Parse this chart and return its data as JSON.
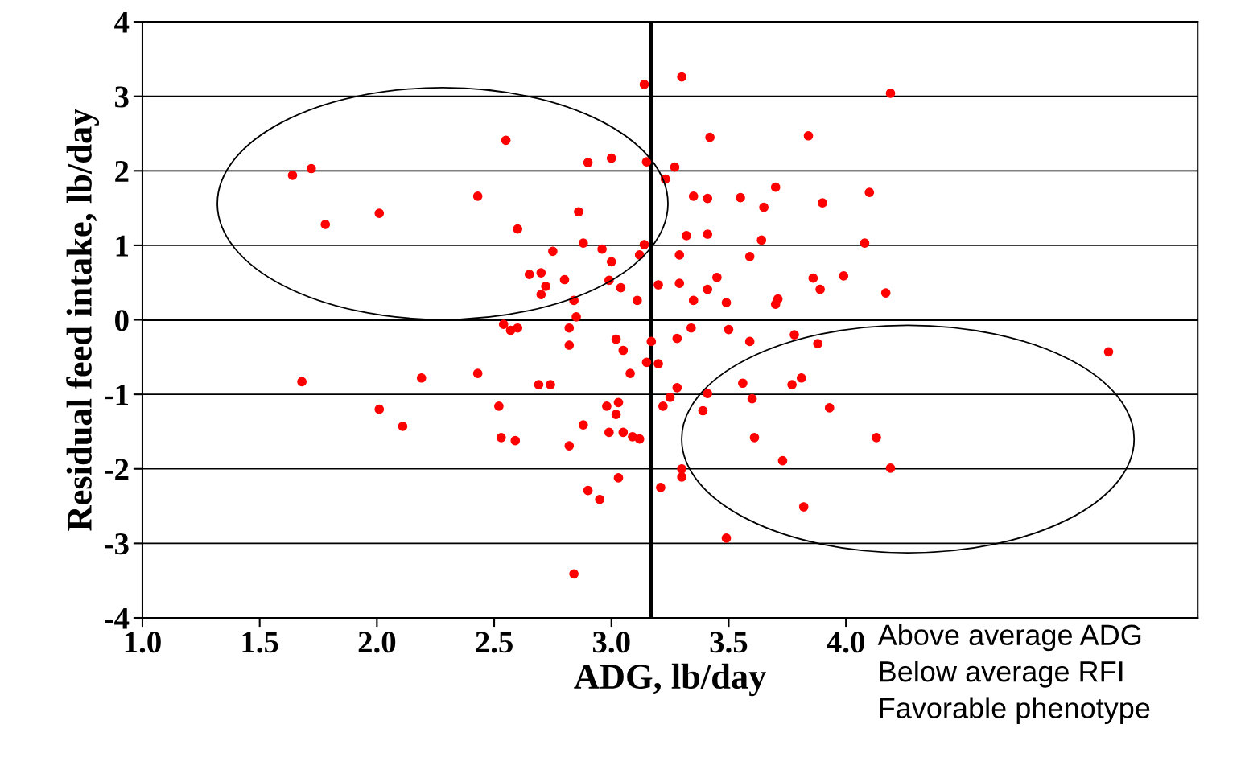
{
  "chart_data": {
    "type": "scatter",
    "xlabel": "ADG, lb/day",
    "ylabel": "Residual feed intake, lb/day",
    "xlim": [
      1.0,
      5.5
    ],
    "ylim": [
      -4,
      4
    ],
    "xticks": [
      {
        "value": 1.0,
        "label": "1.0"
      },
      {
        "value": 1.5,
        "label": "1.5"
      },
      {
        "value": 2.0,
        "label": "2.0"
      },
      {
        "value": 2.5,
        "label": "2.5"
      },
      {
        "value": 3.0,
        "label": "3.0"
      },
      {
        "value": 3.5,
        "label": "3.5"
      },
      {
        "value": 4.0,
        "label": "4.0"
      }
    ],
    "yticks": [
      -4,
      -3,
      -2,
      -1,
      0,
      1,
      2,
      3,
      4
    ],
    "grid": "y",
    "marker": "circle",
    "ref_lines": [
      {
        "axis": "x",
        "value": 3.17,
        "color": "#000000"
      },
      {
        "axis": "y",
        "value": 0,
        "color": "#000000"
      }
    ],
    "annotations": [
      "Above average ADG\nBelow average RFI\nFavorable phenotype"
    ],
    "series": [
      {
        "color": "#ff0000",
        "x": [
          1.64,
          1.72,
          1.78,
          2.01,
          1.68,
          2.01,
          2.11,
          2.19,
          2.43,
          2.43,
          2.55,
          2.52,
          2.53,
          2.59,
          2.54,
          2.57,
          2.6,
          2.6,
          2.65,
          2.7,
          2.72,
          2.7,
          2.75,
          2.69,
          2.74,
          2.8,
          2.84,
          2.85,
          2.82,
          2.82,
          2.86,
          2.88,
          2.9,
          2.88,
          2.82,
          2.9,
          2.84,
          2.95,
          2.96,
          3.0,
          3.0,
          2.99,
          2.98,
          2.99,
          3.02,
          3.03,
          3.02,
          3.05,
          3.04,
          3.08,
          3.05,
          3.09,
          3.12,
          3.03,
          3.11,
          3.12,
          3.14,
          3.15,
          3.14,
          3.15,
          3.17,
          3.2,
          3.2,
          3.23,
          3.27,
          3.3,
          3.22,
          3.25,
          3.28,
          3.28,
          3.29,
          3.29,
          3.32,
          3.35,
          3.34,
          3.35,
          3.41,
          3.42,
          3.41,
          3.41,
          3.45,
          3.41,
          3.39,
          3.3,
          3.3,
          3.21,
          3.49,
          3.5,
          3.49,
          3.55,
          3.59,
          3.59,
          3.64,
          3.65,
          3.7,
          3.71,
          3.7,
          3.56,
          3.6,
          3.61,
          3.73,
          3.77,
          3.81,
          3.78,
          3.82,
          3.84,
          3.86,
          3.89,
          3.88,
          3.9,
          3.93,
          3.99,
          4.08,
          4.1,
          4.17,
          4.19,
          4.13,
          4.19,
          5.12
        ],
        "values": [
          1.94,
          2.03,
          1.28,
          1.43,
          -0.83,
          -1.2,
          -1.43,
          -0.78,
          1.66,
          -0.72,
          2.41,
          -1.16,
          -1.58,
          -1.62,
          -0.06,
          -0.14,
          -0.11,
          1.22,
          0.61,
          0.63,
          0.45,
          0.34,
          0.92,
          -0.87,
          -0.87,
          0.54,
          0.26,
          0.04,
          -0.11,
          -0.34,
          1.45,
          1.03,
          2.11,
          -1.41,
          -1.69,
          -2.29,
          -3.41,
          -2.41,
          0.95,
          2.17,
          0.78,
          0.53,
          -1.16,
          -1.51,
          -1.27,
          -1.11,
          -0.26,
          -0.41,
          0.43,
          -0.72,
          -1.51,
          -1.57,
          -1.6,
          -2.12,
          0.26,
          0.87,
          1.01,
          2.12,
          3.16,
          -0.57,
          -0.29,
          -0.59,
          0.47,
          1.89,
          2.05,
          3.26,
          -1.16,
          -1.04,
          -0.91,
          -0.25,
          0.49,
          0.87,
          1.13,
          0.26,
          -0.11,
          1.66,
          1.63,
          2.45,
          1.15,
          0.41,
          0.57,
          -0.99,
          -1.22,
          -2.0,
          -2.11,
          -2.25,
          0.23,
          -0.13,
          -2.93,
          1.64,
          0.85,
          -0.29,
          1.07,
          1.51,
          1.78,
          0.28,
          0.21,
          -0.85,
          -1.06,
          -1.58,
          -1.89,
          -0.87,
          -0.78,
          -0.2,
          -2.51,
          2.47,
          0.56,
          0.41,
          -0.32,
          1.57,
          -1.18,
          0.59,
          1.03,
          1.71,
          0.36,
          3.04,
          -1.58,
          -1.99,
          -0.43
        ]
      }
    ]
  }
}
